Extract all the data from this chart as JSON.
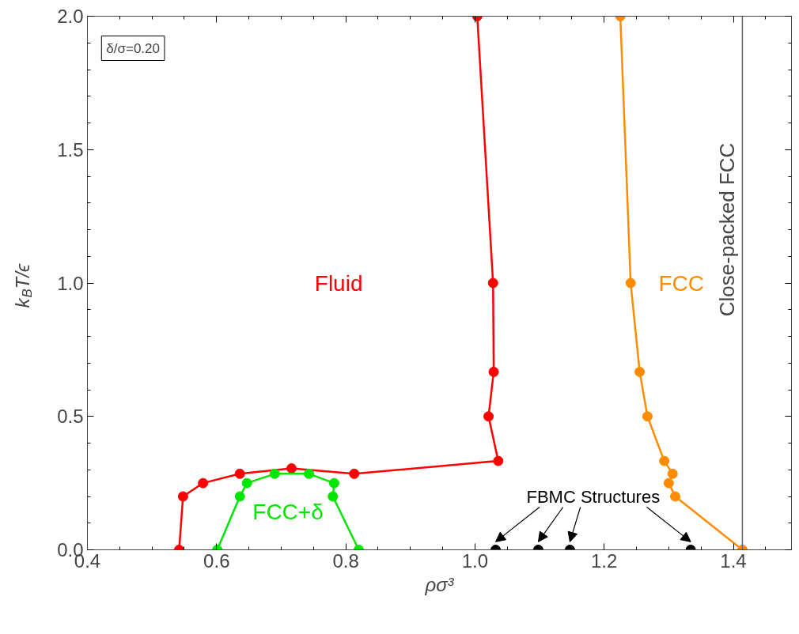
{
  "chart_data": {
    "type": "line",
    "xlabel": "ρσ³",
    "ylabel": "k$_{B}$T/ϵ",
    "series": [
      {
        "name": "Fluid",
        "color": "#ff0000",
        "x": [
          0.542,
          0.548,
          0.579,
          0.636,
          0.716,
          0.813,
          1.036,
          1.021,
          1.029,
          1.028,
          1.0035
        ],
        "values": [
          0,
          0.2,
          0.25,
          0.285,
          0.305,
          0.285,
          0.333,
          0.5,
          0.667,
          1.0,
          2.0
        ]
      },
      {
        "name": "FCC+δ",
        "color": "#00e600",
        "x": [
          0.601,
          0.636,
          0.647,
          0.69,
          0.743,
          0.782,
          0.78,
          0.82
        ],
        "values": [
          0,
          0.2,
          0.25,
          0.285,
          0.285,
          0.25,
          0.2,
          0
        ]
      },
      {
        "name": "FCC",
        "color": "#ff8c00",
        "x": [
          1.225,
          1.241,
          1.255,
          1.267,
          1.293,
          1.306,
          1.3,
          1.31,
          1.414
        ],
        "values": [
          2.0,
          1.0,
          0.667,
          0.5,
          0.333,
          0.285,
          0.25,
          0.2,
          0
        ]
      },
      {
        "name": "FBMC Structures",
        "type": "scatter",
        "color": "#000000",
        "x": [
          1.032,
          1.098,
          1.147,
          1.334
        ],
        "values": [
          0,
          0,
          0,
          0
        ]
      }
    ],
    "annotations": [
      "δ/σ=0.20"
    ],
    "ref_lines": [
      {
        "axis": "x",
        "value": 1.414,
        "label": "Close-packed FCC",
        "color": "#666666"
      }
    ],
    "xlim": [
      0.4,
      1.49
    ],
    "ylim": [
      0,
      2.0
    ],
    "xticks": [
      0.4,
      0.6,
      0.8,
      {
        "value": 1.0,
        "label": "1.0"
      },
      1.2,
      1.4
    ],
    "yticks": [
      {
        "value": 0,
        "label": "0.0"
      },
      0.5,
      {
        "value": 1.0,
        "label": "1.0"
      },
      1.5,
      {
        "value": 2.0,
        "label": "2.0"
      }
    ],
    "marker": "circle",
    "grid": false
  }
}
